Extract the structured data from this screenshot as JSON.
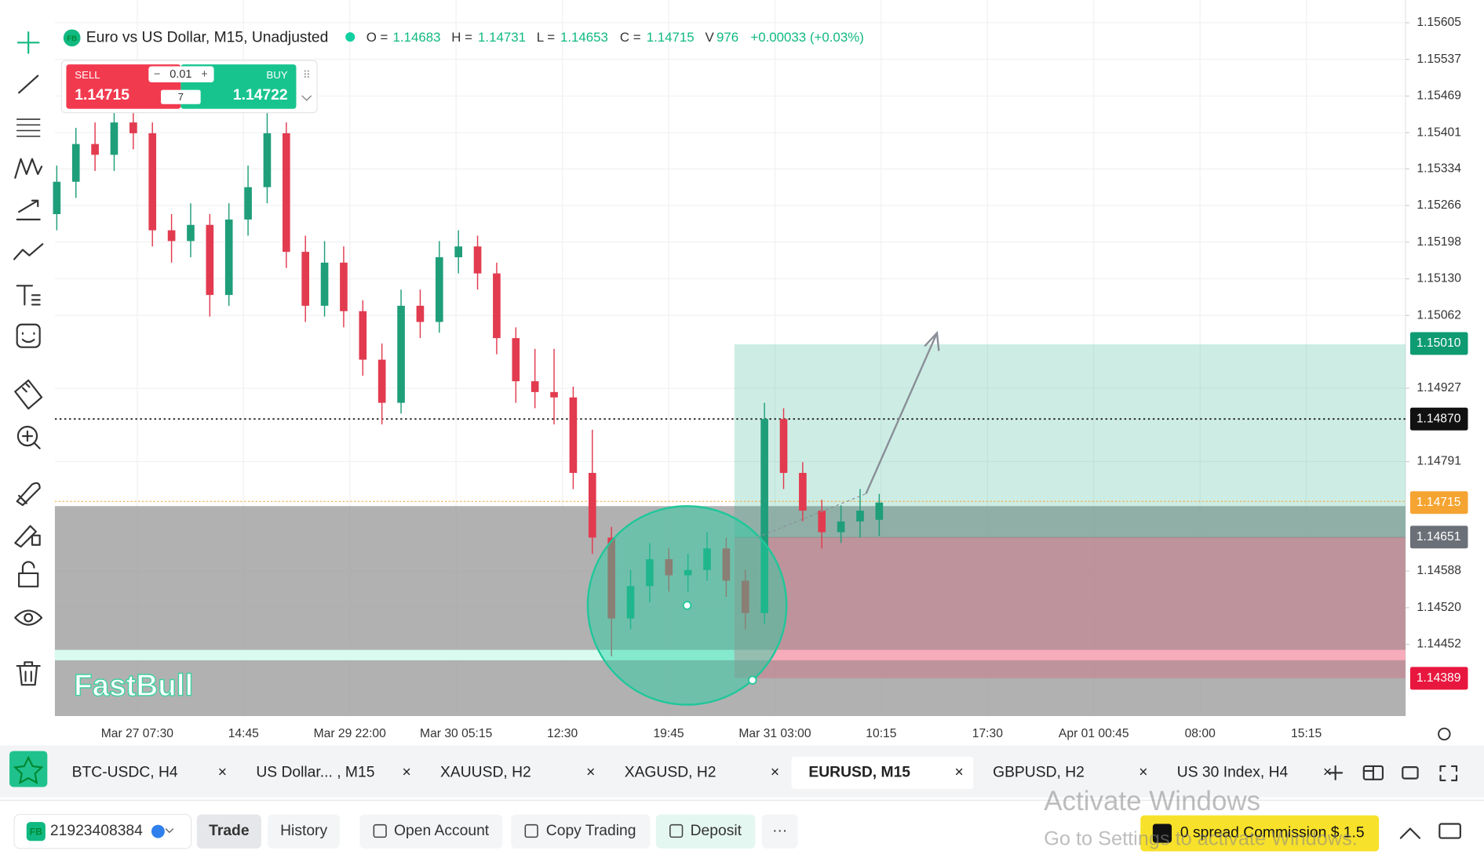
{
  "header": {
    "badge": "FB",
    "symbol": "Euro vs US Dollar, M15, Unadjusted",
    "ohlc": [
      {
        "label": "O =",
        "value": "1.14683"
      },
      {
        "label": "H =",
        "value": "1.14731"
      },
      {
        "label": "L =",
        "value": "1.14653"
      },
      {
        "label": "C =",
        "value": "1.14715"
      }
    ],
    "volume_label": "V",
    "volume": "976",
    "change": "+0.00033 (+0.03%)"
  },
  "trade_widget": {
    "sell_label": "SELL",
    "sell_price": "1.14715",
    "lot": "0.01",
    "buy_label": "BUY",
    "buy_price": "1.14722",
    "spread": "7"
  },
  "chart_data": {
    "type": "candlestick",
    "up_color": "#1f9e7a",
    "down_color": "#e23b4f",
    "grid": true,
    "logo": "FastBull",
    "ylim": [
      1.14319,
      1.15647
    ],
    "yticks": [
      1.15605,
      1.15537,
      1.15469,
      1.15401,
      1.15334,
      1.15266,
      1.15198,
      {
        "value": 1.1513,
        "label": "1.15130"
      },
      1.15062,
      1.14927,
      1.14791,
      1.14588,
      {
        "value": 1.1452,
        "label": "1.14520"
      },
      1.14452
    ],
    "price_labels": [
      {
        "value": 1.1501,
        "label": "1.15010",
        "color": "#0e9b72"
      },
      {
        "value": 1.1487,
        "label": "1.14870",
        "color": "#111111"
      },
      {
        "value": 1.14715,
        "label": "1.14715",
        "color": "#f5a431"
      },
      {
        "value": 1.14651,
        "label": "1.14651",
        "color": "#6b6f78"
      },
      {
        "value": 1.14389,
        "label": "1.14389",
        "color": "#e8173f"
      }
    ],
    "x_labels": [
      "Mar 27 07:30",
      "14:45",
      "Mar 29 22:00",
      "Mar 30 05:15",
      "12:30",
      "19:45",
      "Mar 31 03:00",
      "10:15",
      "17:30",
      "Apr 01 00:45",
      "08:00",
      "15:15"
    ],
    "candles": [
      [
        1.1525,
        1.1534,
        1.1522,
        1.1531
      ],
      [
        1.1531,
        1.1541,
        1.1528,
        1.1538
      ],
      [
        1.1538,
        1.1542,
        1.1533,
        1.1536
      ],
      [
        1.1536,
        1.1545,
        1.1533,
        1.1542
      ],
      [
        1.1542,
        1.1545,
        1.1537,
        1.154
      ],
      [
        1.154,
        1.1542,
        1.1519,
        1.1522
      ],
      [
        1.1522,
        1.1525,
        1.1516,
        1.152
      ],
      [
        1.152,
        1.1527,
        1.1517,
        1.1523
      ],
      [
        1.1523,
        1.1525,
        1.1506,
        1.151
      ],
      [
        1.151,
        1.1527,
        1.1508,
        1.1524
      ],
      [
        1.1524,
        1.1534,
        1.1521,
        1.153
      ],
      [
        1.153,
        1.1546,
        1.1527,
        1.154
      ],
      [
        1.154,
        1.1542,
        1.1515,
        1.1518
      ],
      [
        1.1518,
        1.1521,
        1.1505,
        1.1508
      ],
      [
        1.1508,
        1.152,
        1.1506,
        1.1516
      ],
      [
        1.1516,
        1.1519,
        1.1504,
        1.1507
      ],
      [
        1.1507,
        1.1509,
        1.1495,
        1.1498
      ],
      [
        1.1498,
        1.1501,
        1.1486,
        1.149
      ],
      [
        1.149,
        1.1511,
        1.1488,
        1.1508
      ],
      [
        1.1508,
        1.1511,
        1.1502,
        1.1505
      ],
      [
        1.1505,
        1.152,
        1.1503,
        1.1517
      ],
      [
        1.1517,
        1.1522,
        1.1514,
        1.1519
      ],
      [
        1.1519,
        1.1521,
        1.1511,
        1.1514
      ],
      [
        1.1514,
        1.1516,
        1.1499,
        1.1502
      ],
      [
        1.1502,
        1.1504,
        1.149,
        1.1494
      ],
      [
        1.1494,
        1.15,
        1.1489,
        1.1492
      ],
      [
        1.1492,
        1.15,
        1.1486,
        1.1491
      ],
      [
        1.1491,
        1.1493,
        1.1474,
        1.1477
      ],
      [
        1.1477,
        1.1485,
        1.1462,
        1.1465
      ],
      [
        1.1465,
        1.1467,
        1.1443,
        1.145
      ],
      [
        1.145,
        1.1459,
        1.1448,
        1.1456
      ],
      [
        1.1456,
        1.1464,
        1.1453,
        1.1461
      ],
      [
        1.1461,
        1.1463,
        1.1455,
        1.1458
      ],
      [
        1.1458,
        1.1462,
        1.1455,
        1.1459
      ],
      [
        1.1459,
        1.1466,
        1.1457,
        1.1463
      ],
      [
        1.1463,
        1.1465,
        1.1454,
        1.1457
      ],
      [
        1.1457,
        1.1459,
        1.1448,
        1.1451
      ],
      [
        1.1451,
        1.149,
        1.1449,
        1.1487
      ],
      [
        1.1487,
        1.1489,
        1.1474,
        1.1477
      ],
      [
        1.1477,
        1.1479,
        1.1468,
        1.147
      ],
      [
        1.147,
        1.1472,
        1.1463,
        1.1466
      ],
      [
        1.1466,
        1.1471,
        1.1464,
        1.1468
      ],
      [
        1.1468,
        1.1474,
        1.1465,
        1.147
      ],
      [
        1.14683,
        1.14731,
        1.14653,
        1.14715
      ]
    ]
  },
  "tabs": [
    {
      "label": "BTC-USDC, H4",
      "active": false
    },
    {
      "label": "US Dollar... , M15",
      "active": false
    },
    {
      "label": "XAUUSD, H2",
      "active": false
    },
    {
      "label": "XAGUSD, H2",
      "active": false
    },
    {
      "label": "EURUSD, M15",
      "active": true
    },
    {
      "label": "GBPUSD, H2",
      "active": false
    },
    {
      "label": "US 30 Index, H4",
      "active": false
    }
  ],
  "footer": {
    "badge": "FB",
    "account": "21923408384",
    "buttons": [
      "Trade",
      "History",
      "Open Account",
      "Copy Trading",
      "Deposit",
      "···"
    ],
    "promo": "0 spread Commission $ 1.5"
  },
  "watermark": {
    "title": "Activate Windows",
    "subtitle": "Go to Settings to activate Windows."
  }
}
